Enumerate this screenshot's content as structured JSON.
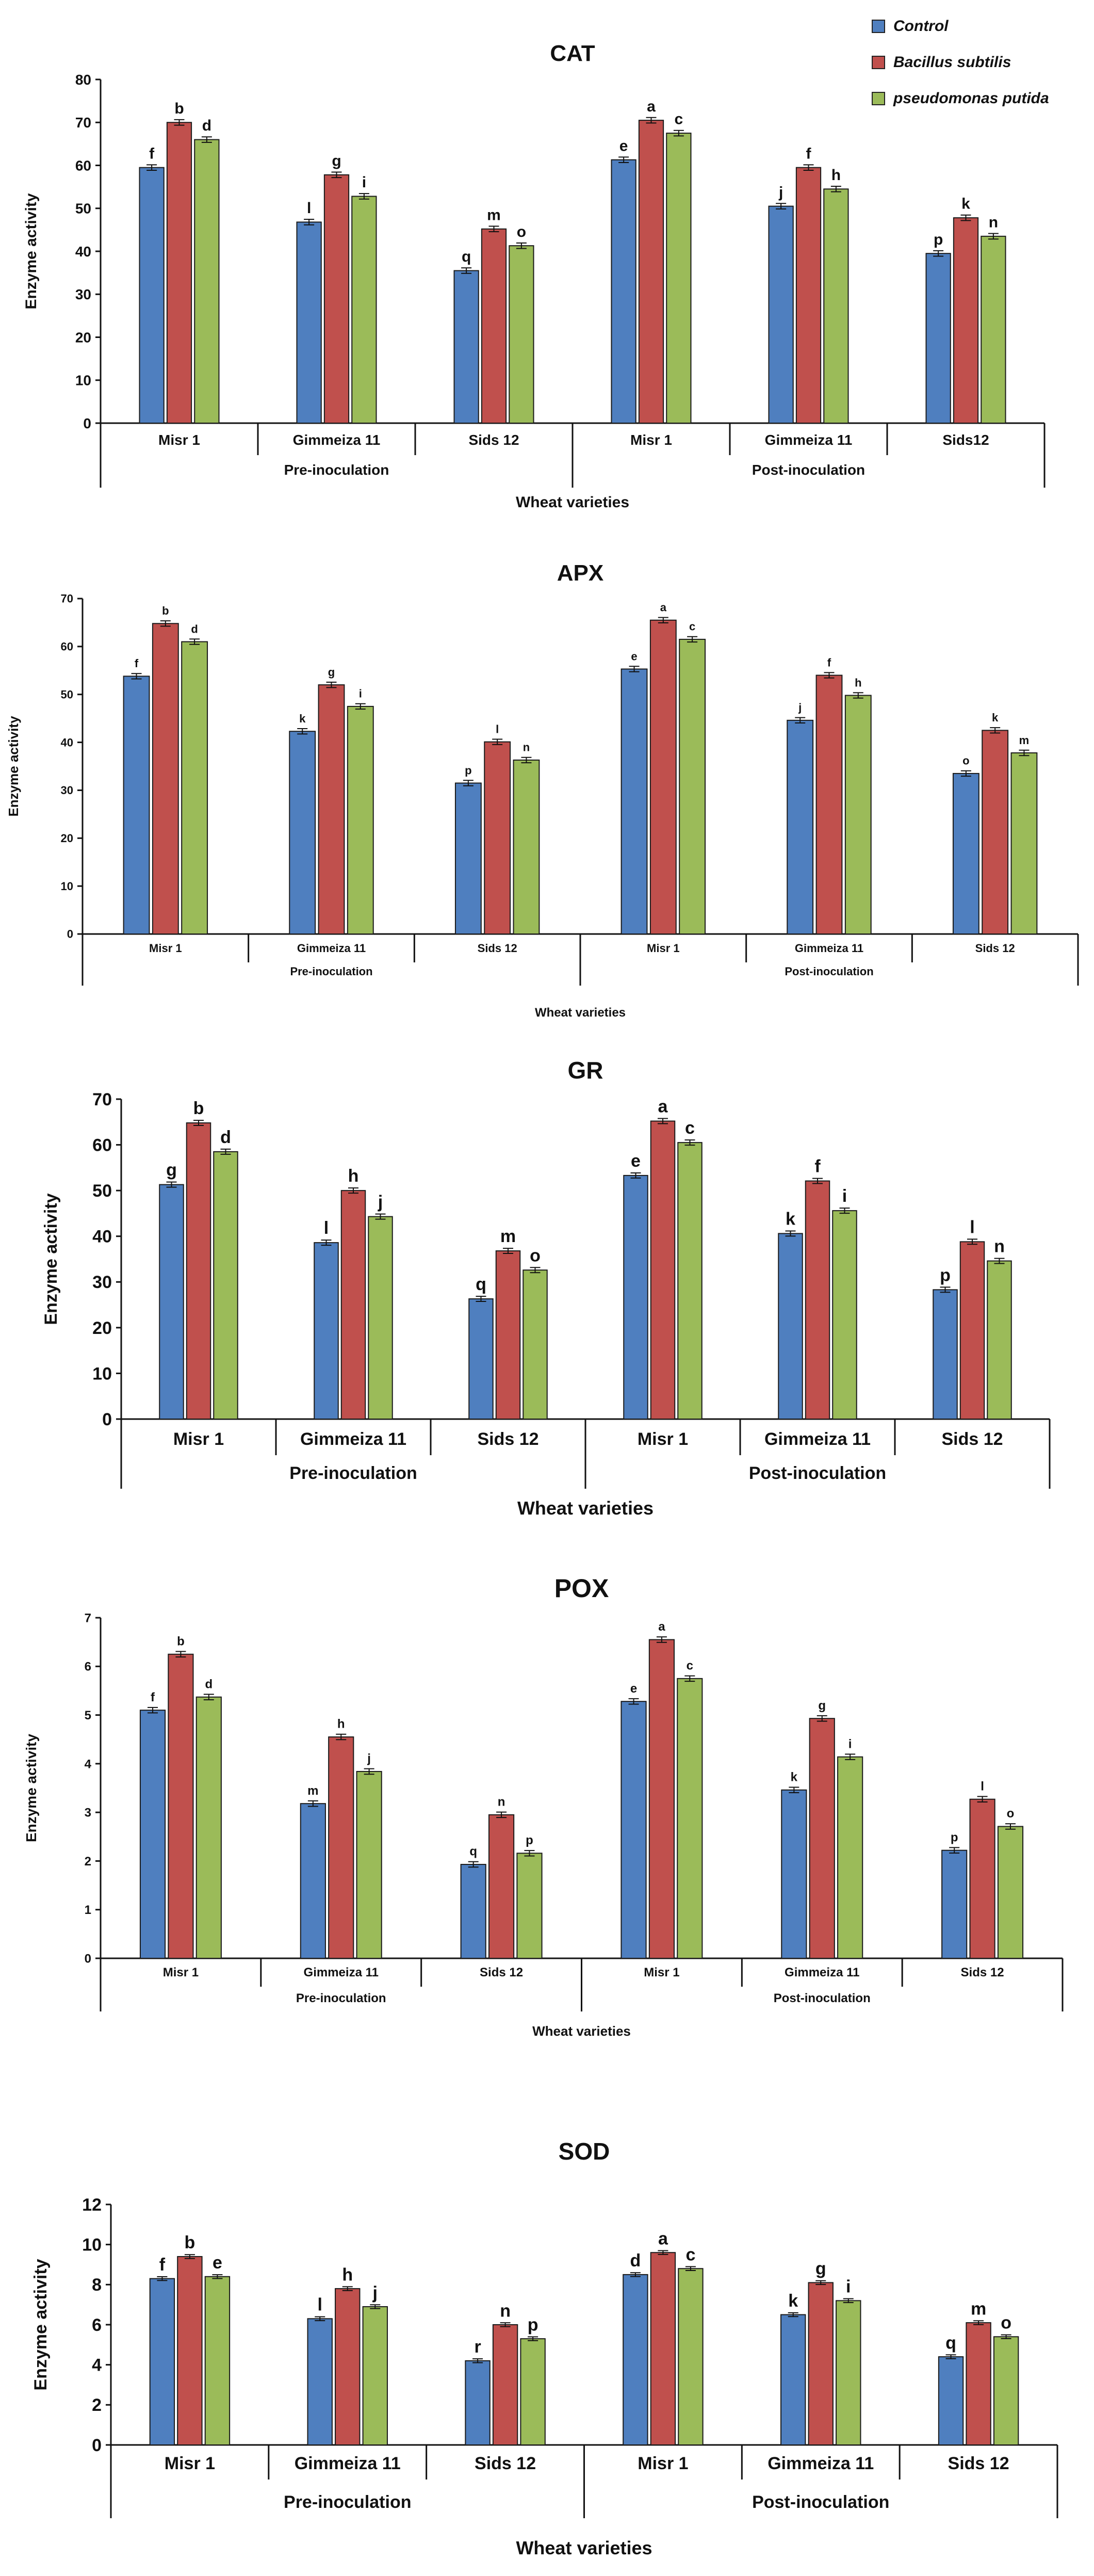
{
  "legend": {
    "series": [
      {
        "name": "Control",
        "color": "#4f7fbf"
      },
      {
        "name": "Bacillus subtilis",
        "color": "#c0504d"
      },
      {
        "name": "pseudomonas putida",
        "color": "#9bbb59"
      }
    ]
  },
  "chart_data": [
    {
      "type": "bar",
      "title": "CAT",
      "ylabel": "Enzyme activity",
      "xlabel": "Wheat varieties",
      "ylim": [
        0,
        80
      ],
      "yticks": [
        0,
        10,
        20,
        30,
        40,
        50,
        60,
        70,
        80
      ],
      "categories": [
        "Misr 1",
        "Gimmeiza 11",
        "Sids 12",
        "Misr 1",
        "Gimmeiza 11",
        "Sids12"
      ],
      "groups": [
        "Pre-inoculation",
        "Post-inoculation"
      ],
      "series": [
        {
          "name": "Control",
          "values": [
            59.5,
            46.8,
            35.5,
            61.3,
            50.5,
            39.5
          ],
          "letters": [
            "f",
            "l",
            "q",
            "e",
            "j",
            "p"
          ]
        },
        {
          "name": "Bacillus subtilis",
          "values": [
            70,
            57.8,
            45.2,
            70.5,
            59.5,
            47.8
          ],
          "letters": [
            "b",
            "g",
            "m",
            "a",
            "f",
            "k"
          ]
        },
        {
          "name": "pseudomonas putida",
          "values": [
            66,
            52.8,
            41.3,
            67.5,
            54.5,
            43.5
          ],
          "letters": [
            "d",
            "i",
            "o",
            "c",
            "h",
            "n"
          ]
        }
      ]
    },
    {
      "type": "bar",
      "title": "APX",
      "ylabel": "Enzyme activity",
      "xlabel": "Wheat varieties",
      "ylim": [
        0,
        70
      ],
      "yticks": [
        0,
        10,
        20,
        30,
        40,
        50,
        60,
        70
      ],
      "categories": [
        "Misr 1",
        "Gimmeiza 11",
        "Sids 12",
        "Misr 1",
        "Gimmeiza 11",
        "Sids 12"
      ],
      "groups": [
        "Pre-inoculation",
        "Post-inoculation"
      ],
      "series": [
        {
          "name": "Control",
          "values": [
            53.8,
            42.3,
            31.5,
            55.3,
            44.6,
            33.5
          ],
          "letters": [
            "f",
            "k",
            "p",
            "e",
            "j",
            "o"
          ]
        },
        {
          "name": "Bacillus subtilis",
          "values": [
            64.8,
            52,
            40.1,
            65.5,
            54,
            42.5
          ],
          "letters": [
            "b",
            "g",
            "l",
            "a",
            "f",
            "k"
          ]
        },
        {
          "name": "pseudomonas putida",
          "values": [
            61,
            47.5,
            36.3,
            61.5,
            49.8,
            37.8
          ],
          "letters": [
            "d",
            "i",
            "n",
            "c",
            "h",
            "m"
          ]
        }
      ]
    },
    {
      "type": "bar",
      "title": "GR",
      "ylabel": "Enzyme activity",
      "xlabel": "Wheat varieties",
      "ylim": [
        0,
        70
      ],
      "yticks": [
        0,
        10,
        20,
        30,
        40,
        50,
        60,
        70
      ],
      "categories": [
        "Misr 1",
        "Gimmeiza 11",
        "Sids 12",
        "Misr 1",
        "Gimmeiza 11",
        "Sids 12"
      ],
      "groups": [
        "Pre-inoculation",
        "Post-inoculation"
      ],
      "series": [
        {
          "name": "Control",
          "values": [
            51.3,
            38.6,
            26.3,
            53.3,
            40.6,
            28.3
          ],
          "letters": [
            "g",
            "l",
            "q",
            "e",
            "k",
            "p"
          ]
        },
        {
          "name": "Bacillus subtilis",
          "values": [
            64.8,
            50,
            36.8,
            65.2,
            52.1,
            38.8
          ],
          "letters": [
            "b",
            "h",
            "m",
            "a",
            "f",
            "l"
          ]
        },
        {
          "name": "pseudomonas putida",
          "values": [
            58.5,
            44.3,
            32.6,
            60.5,
            45.6,
            34.6
          ],
          "letters": [
            "d",
            "j",
            "o",
            "c",
            "i",
            "n"
          ]
        }
      ]
    },
    {
      "type": "bar",
      "title": "POX",
      "ylabel": "Enzyme activity",
      "xlabel": "Wheat varieties",
      "ylim": [
        0,
        7
      ],
      "yticks": [
        0,
        1,
        2,
        3,
        4,
        5,
        6,
        7
      ],
      "categories": [
        "Misr 1",
        "Gimmeiza 11",
        "Sids 12",
        "Misr 1",
        "Gimmeiza 11",
        "Sids 12"
      ],
      "groups": [
        "Pre-inoculation",
        "Post-inoculation"
      ],
      "series": [
        {
          "name": "Control",
          "values": [
            5.1,
            3.18,
            1.93,
            5.28,
            3.46,
            2.22
          ],
          "letters": [
            "f",
            "m",
            "q",
            "e",
            "k",
            "p"
          ]
        },
        {
          "name": "Bacillus subtilis",
          "values": [
            6.25,
            4.55,
            2.95,
            6.55,
            4.93,
            3.27
          ],
          "letters": [
            "b",
            "h",
            "n",
            "a",
            "g",
            "l"
          ]
        },
        {
          "name": "pseudomonas putida",
          "values": [
            5.37,
            3.84,
            2.16,
            5.75,
            4.14,
            2.71
          ],
          "letters": [
            "d",
            "j",
            "p",
            "c",
            "i",
            "o"
          ]
        }
      ]
    },
    {
      "type": "bar",
      "title": "SOD",
      "ylabel": "Enzyme activity",
      "xlabel": "Wheat varieties",
      "ylim": [
        0,
        12
      ],
      "yticks": [
        0,
        2,
        4,
        6,
        8,
        10,
        12
      ],
      "categories": [
        "Misr 1",
        "Gimmeiza 11",
        "Sids 12",
        "Misr 1",
        "Gimmeiza 11",
        "Sids 12"
      ],
      "groups": [
        "Pre-inoculation",
        "Post-inoculation"
      ],
      "series": [
        {
          "name": "Control",
          "values": [
            8.3,
            6.3,
            4.2,
            8.5,
            6.5,
            4.4
          ],
          "letters": [
            "f",
            "l",
            "r",
            "d",
            "k",
            "q"
          ]
        },
        {
          "name": "Bacillus subtilis",
          "values": [
            9.4,
            7.8,
            6.0,
            9.6,
            8.1,
            6.1
          ],
          "letters": [
            "b",
            "h",
            "n",
            "a",
            "g",
            "m"
          ]
        },
        {
          "name": "pseudomonas putida",
          "values": [
            8.4,
            6.9,
            5.3,
            8.8,
            7.2,
            5.4
          ],
          "letters": [
            "e",
            "j",
            "p",
            "c",
            "i",
            "o"
          ]
        }
      ]
    }
  ]
}
